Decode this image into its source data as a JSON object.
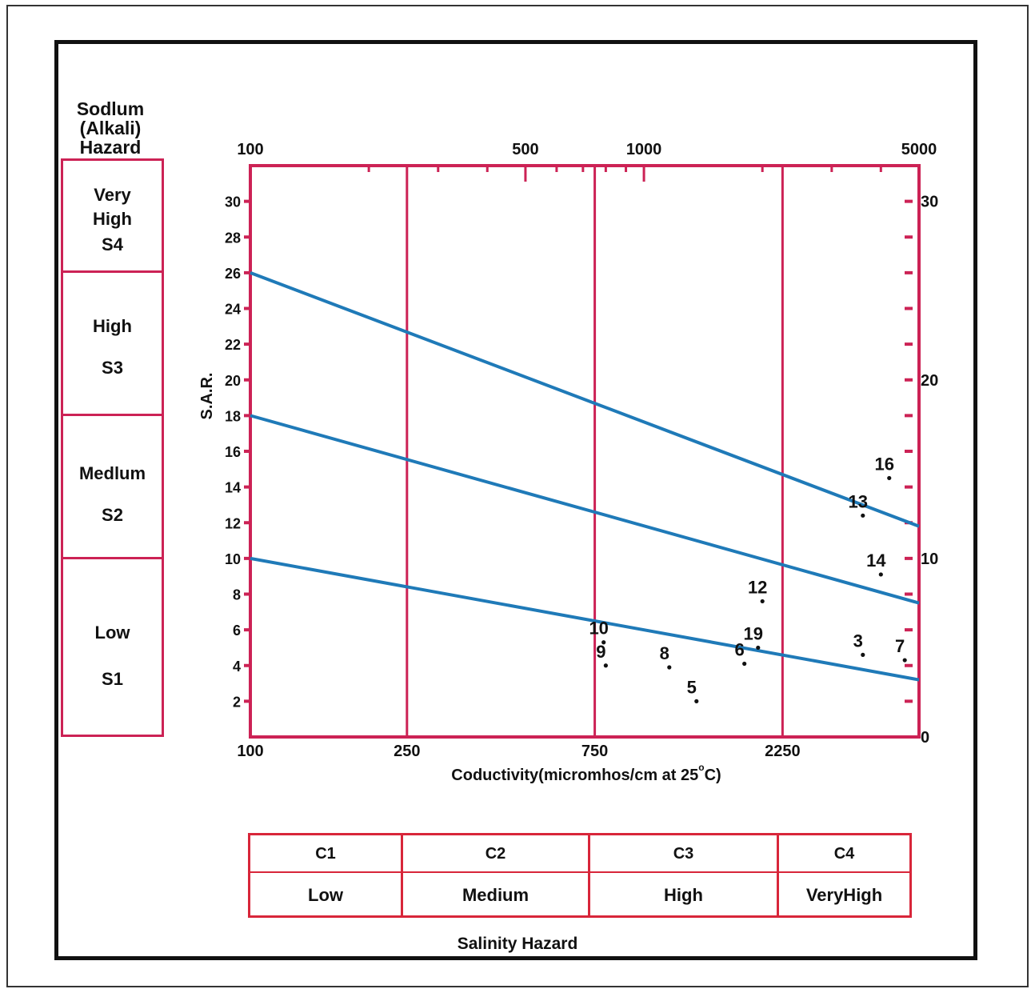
{
  "hazard_heading": [
    "Sodlum",
    "(Alkali)",
    "Hazard"
  ],
  "sodium_classes": [
    {
      "lines": [
        "Very",
        "High",
        "S4"
      ]
    },
    {
      "lines": [
        "High",
        "",
        "S3"
      ]
    },
    {
      "lines": [
        "Medlum",
        "",
        "S2"
      ]
    },
    {
      "lines": [
        "Low",
        "",
        "S1"
      ]
    }
  ],
  "salinity_classes": [
    {
      "code": "C1",
      "label": "Low"
    },
    {
      "code": "C2",
      "label": "Medium"
    },
    {
      "code": "C3",
      "label": "High"
    },
    {
      "code": "C4",
      "label": "VeryHigh"
    }
  ],
  "salinity_title": "Salinity Hazard",
  "colors": {
    "frame": "#cc2255",
    "curve": "#1f7ab8",
    "table_border": "#d8263a",
    "text": "#111111"
  },
  "chart_data": {
    "type": "scatter",
    "title": "",
    "xlabel": "Coductivity(micromhos/cm at 25",
    "xlabel_degree": "o",
    "xlabel_suffix": "C)",
    "ylabel": "S.A.R.",
    "x_scale": "log",
    "xlim": [
      100,
      5000
    ],
    "ylim": [
      0,
      32
    ],
    "grid": false,
    "legend": "none",
    "top_axis_ticks": [
      "100",
      "500",
      "1000",
      "5000"
    ],
    "bottom_axis_ticks": [
      "100",
      "250",
      "750",
      "2250"
    ],
    "class_boundaries_x": [
      250,
      750,
      2250
    ],
    "left_axis_ticks": [
      2,
      4,
      6,
      8,
      10,
      12,
      14,
      16,
      18,
      20,
      22,
      24,
      26,
      28,
      30
    ],
    "right_axis_ticks": [
      "0",
      "10",
      "20",
      "30"
    ],
    "class_lines": [
      {
        "x": [
          100,
          5000
        ],
        "y": [
          26,
          11.8
        ]
      },
      {
        "x": [
          100,
          5000
        ],
        "y": [
          18,
          7.5
        ]
      },
      {
        "x": [
          100,
          5000
        ],
        "y": [
          10,
          3.2
        ]
      }
    ],
    "points": [
      {
        "label": "3",
        "x": 3600,
        "y": 4.6
      },
      {
        "label": "5",
        "x": 1360,
        "y": 2.0
      },
      {
        "label": "6",
        "x": 1800,
        "y": 4.1
      },
      {
        "label": "7",
        "x": 4600,
        "y": 4.3
      },
      {
        "label": "8",
        "x": 1160,
        "y": 3.9
      },
      {
        "label": "9",
        "x": 800,
        "y": 4.0
      },
      {
        "label": "10",
        "x": 790,
        "y": 5.3
      },
      {
        "label": "12",
        "x": 2000,
        "y": 7.6
      },
      {
        "label": "13",
        "x": 3600,
        "y": 12.4
      },
      {
        "label": "14",
        "x": 4000,
        "y": 9.1
      },
      {
        "label": "16",
        "x": 4200,
        "y": 14.5
      },
      {
        "label": "19",
        "x": 1950,
        "y": 5.0
      }
    ]
  }
}
